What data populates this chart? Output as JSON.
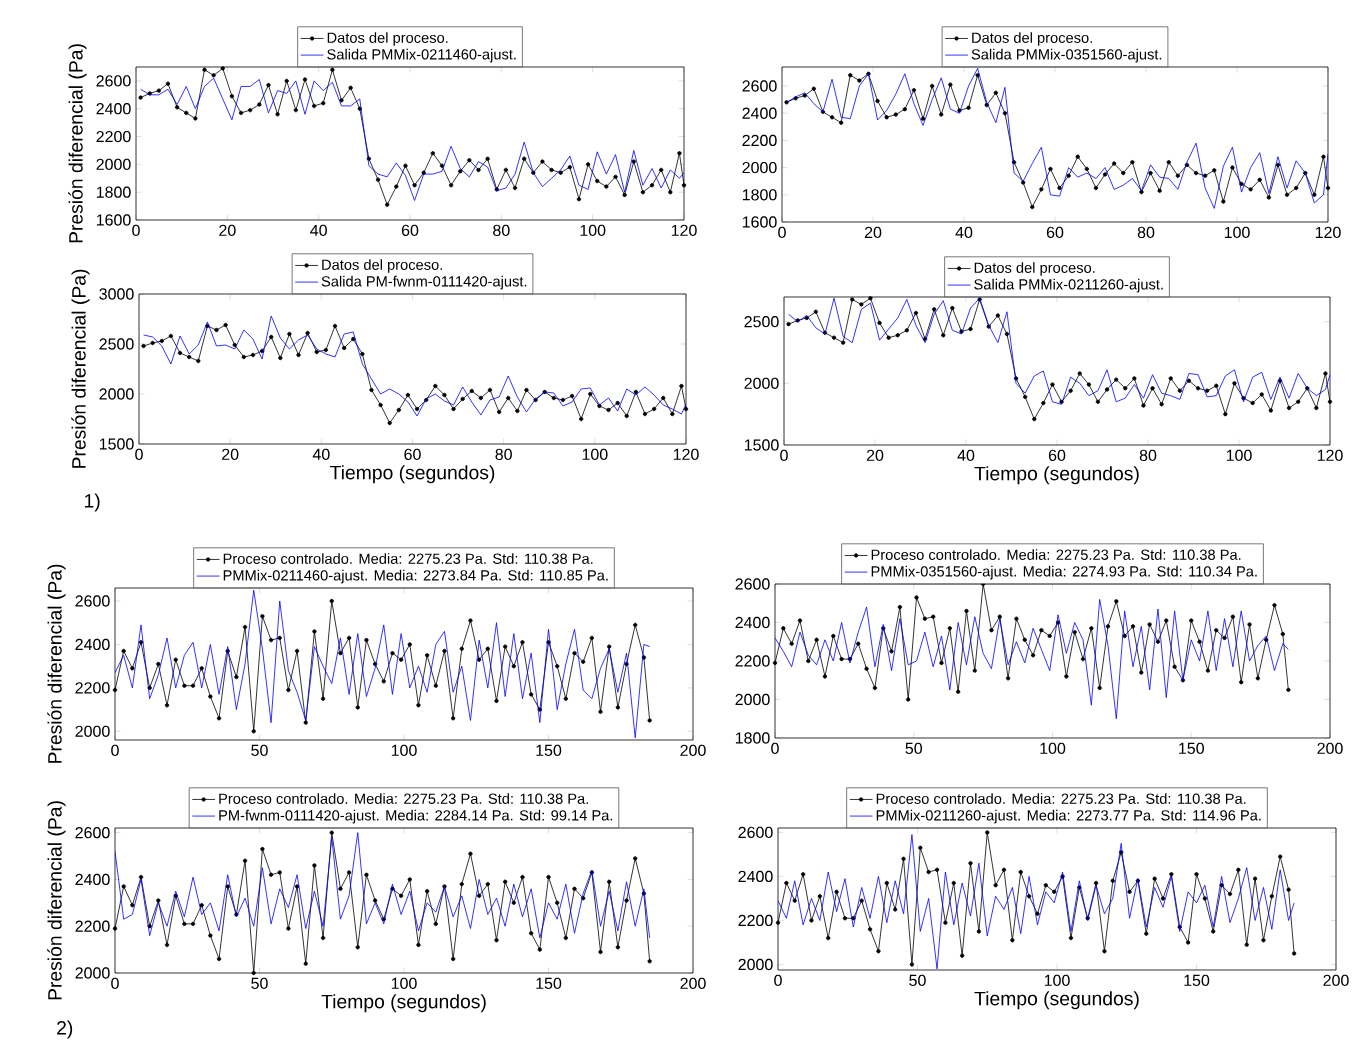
{
  "chart_data": [
    {
      "type": "line",
      "ylabel": "Presión diferencial (Pa)",
      "legend": "top",
      "xlim": [
        0,
        120
      ],
      "xticks": [
        0,
        20,
        40,
        60,
        80,
        100,
        120
      ],
      "ylim": [
        1600,
        2700
      ],
      "yticks": [
        1600,
        1800,
        2000,
        2200,
        2400,
        2600
      ],
      "x": [
        1,
        3,
        5,
        7,
        9,
        11,
        13,
        15,
        17,
        19,
        21,
        23,
        25,
        27,
        29,
        31,
        33,
        35,
        37,
        39,
        41,
        43,
        45,
        47,
        49,
        51,
        53,
        55,
        57,
        59,
        61,
        63,
        65,
        67,
        69,
        71,
        73,
        75,
        77,
        79,
        81,
        83,
        85,
        87,
        89,
        91,
        93,
        95,
        97,
        99,
        101,
        103,
        105,
        107,
        109,
        111,
        113,
        115,
        117,
        119,
        120
      ],
      "series": [
        {
          "name": "Datos del proceso.",
          "color": "#000000",
          "marker": "circle",
          "values": [
            2480,
            2510,
            2530,
            2580,
            2410,
            2370,
            2330,
            2680,
            2640,
            2690,
            2490,
            2370,
            2390,
            2430,
            2570,
            2360,
            2600,
            2390,
            2610,
            2420,
            2440,
            2680,
            2460,
            2550,
            2400,
            2040,
            1890,
            1710,
            1840,
            1990,
            1850,
            1940,
            2080,
            1990,
            1850,
            1950,
            2030,
            1960,
            2040,
            1820,
            1960,
            1830,
            2040,
            1940,
            2020,
            1960,
            1940,
            1980,
            1750,
            2000,
            1880,
            1840,
            1910,
            1780,
            2020,
            1800,
            1850,
            1960,
            1800,
            2080,
            1850
          ]
        },
        {
          "name": "Salida PMMix-0211460-ajust.",
          "color": "#0000ff",
          "marker": "none",
          "values": [
            2540,
            2500,
            2500,
            2540,
            2430,
            2560,
            2400,
            2560,
            2620,
            2470,
            2320,
            2560,
            2560,
            2610,
            2370,
            2530,
            2510,
            2600,
            2360,
            2600,
            2530,
            2590,
            2420,
            2420,
            2470,
            1990,
            1930,
            1910,
            2010,
            1920,
            1740,
            1930,
            1930,
            1950,
            2130,
            1970,
            1910,
            2020,
            1980,
            1810,
            1830,
            1930,
            2160,
            1940,
            1840,
            1900,
            1960,
            2060,
            1850,
            1820,
            2090,
            1930,
            2070,
            1800,
            2100,
            1850,
            1970,
            1830,
            1960,
            1900,
            1940
          ]
        }
      ]
    },
    {
      "type": "line",
      "legend": "top",
      "xlim": [
        0,
        120
      ],
      "xticks": [
        0,
        20,
        40,
        60,
        80,
        100,
        120
      ],
      "ylim": [
        1600,
        2740
      ],
      "yticks": [
        1600,
        1800,
        2000,
        2200,
        2400,
        2600
      ],
      "x": [
        1,
        3,
        5,
        7,
        9,
        11,
        13,
        15,
        17,
        19,
        21,
        23,
        25,
        27,
        29,
        31,
        33,
        35,
        37,
        39,
        41,
        43,
        45,
        47,
        49,
        51,
        53,
        55,
        57,
        59,
        61,
        63,
        65,
        67,
        69,
        71,
        73,
        75,
        77,
        79,
        81,
        83,
        85,
        87,
        89,
        91,
        93,
        95,
        97,
        99,
        101,
        103,
        105,
        107,
        109,
        111,
        113,
        115,
        117,
        119,
        120
      ],
      "series": [
        {
          "name": "Datos del proceso.",
          "color": "#000000",
          "marker": "circle",
          "values": [
            2480,
            2510,
            2530,
            2580,
            2410,
            2370,
            2330,
            2680,
            2640,
            2690,
            2490,
            2370,
            2390,
            2430,
            2570,
            2360,
            2600,
            2390,
            2610,
            2420,
            2440,
            2680,
            2460,
            2550,
            2400,
            2040,
            1890,
            1710,
            1840,
            1990,
            1850,
            1940,
            2080,
            1990,
            1850,
            1950,
            2030,
            1960,
            2040,
            1820,
            1960,
            1830,
            2040,
            1940,
            2020,
            1960,
            1940,
            1980,
            1750,
            2000,
            1880,
            1840,
            1910,
            1780,
            2020,
            1800,
            1850,
            1960,
            1800,
            2080,
            1850
          ]
        },
        {
          "name": "Salida PMMix-0351560-ajust.",
          "color": "#0000ff",
          "marker": "none",
          "values": [
            2480,
            2520,
            2550,
            2470,
            2410,
            2650,
            2370,
            2360,
            2600,
            2690,
            2350,
            2420,
            2540,
            2690,
            2470,
            2310,
            2500,
            2660,
            2430,
            2400,
            2600,
            2730,
            2480,
            2330,
            2590,
            1960,
            1900,
            2030,
            2150,
            1800,
            1790,
            2000,
            1930,
            1960,
            1920,
            2000,
            1840,
            1870,
            1920,
            1830,
            2020,
            1930,
            1920,
            1840,
            2040,
            2180,
            1850,
            1700,
            2010,
            2150,
            1820,
            2000,
            2110,
            1810,
            2080,
            1850,
            2050,
            1960,
            1740,
            1800,
            2100
          ]
        }
      ]
    },
    {
      "type": "line",
      "xlabel": "Tiempo (segundos)",
      "ylabel": "Presión diferencial (Pa)",
      "legend": "top",
      "annotations": [
        "1)"
      ],
      "xlim": [
        0,
        120
      ],
      "xticks": [
        0,
        20,
        40,
        60,
        80,
        100,
        120
      ],
      "ylim": [
        1500,
        3000
      ],
      "yticks": [
        1500,
        2000,
        2500,
        3000
      ],
      "x": [
        1,
        3,
        5,
        7,
        9,
        11,
        13,
        15,
        17,
        19,
        21,
        23,
        25,
        27,
        29,
        31,
        33,
        35,
        37,
        39,
        41,
        43,
        45,
        47,
        49,
        51,
        53,
        55,
        57,
        59,
        61,
        63,
        65,
        67,
        69,
        71,
        73,
        75,
        77,
        79,
        81,
        83,
        85,
        87,
        89,
        91,
        93,
        95,
        97,
        99,
        101,
        103,
        105,
        107,
        109,
        111,
        113,
        115,
        117,
        119,
        120
      ],
      "series": [
        {
          "name": "Datos del proceso.",
          "color": "#000000",
          "marker": "circle",
          "values": [
            2480,
            2510,
            2530,
            2580,
            2410,
            2370,
            2330,
            2680,
            2640,
            2690,
            2490,
            2370,
            2390,
            2430,
            2570,
            2360,
            2600,
            2390,
            2610,
            2420,
            2440,
            2680,
            2460,
            2550,
            2400,
            2040,
            1890,
            1710,
            1840,
            1990,
            1850,
            1940,
            2080,
            1990,
            1850,
            1950,
            2030,
            1960,
            2040,
            1820,
            1960,
            1830,
            2040,
            1940,
            2020,
            1960,
            1940,
            1980,
            1750,
            2000,
            1880,
            1840,
            1910,
            1780,
            2020,
            1800,
            1850,
            1960,
            1800,
            2080,
            1850
          ]
        },
        {
          "name": "Salida PM-fwnm-0111420-ajust.",
          "color": "#0000ff",
          "marker": "none",
          "values": [
            2590,
            2570,
            2480,
            2300,
            2580,
            2400,
            2490,
            2720,
            2480,
            2490,
            2450,
            2640,
            2550,
            2350,
            2780,
            2560,
            2450,
            2540,
            2590,
            2450,
            2400,
            2370,
            2600,
            2620,
            2300,
            2150,
            2000,
            2050,
            2000,
            1920,
            1780,
            1950,
            2000,
            1930,
            1890,
            2070,
            1920,
            1790,
            1940,
            1970,
            2180,
            1970,
            1820,
            1950,
            2020,
            2010,
            1880,
            1920,
            2050,
            2060,
            1890,
            1960,
            1830,
            2050,
            1990,
            2070,
            1990,
            1890,
            1850,
            1800,
            1900
          ]
        }
      ]
    },
    {
      "type": "line",
      "xlabel": "Tiempo (segundos)",
      "legend": "top",
      "xlim": [
        0,
        120
      ],
      "xticks": [
        0,
        20,
        40,
        60,
        80,
        100,
        120
      ],
      "ylim": [
        1500,
        2700
      ],
      "yticks": [
        1500,
        2000,
        2500
      ],
      "x": [
        1,
        3,
        5,
        7,
        9,
        11,
        13,
        15,
        17,
        19,
        21,
        23,
        25,
        27,
        29,
        31,
        33,
        35,
        37,
        39,
        41,
        43,
        45,
        47,
        49,
        51,
        53,
        55,
        57,
        59,
        61,
        63,
        65,
        67,
        69,
        71,
        73,
        75,
        77,
        79,
        81,
        83,
        85,
        87,
        89,
        91,
        93,
        95,
        97,
        99,
        101,
        103,
        105,
        107,
        109,
        111,
        113,
        115,
        117,
        119,
        120
      ],
      "series": [
        {
          "name": "Datos del proceso.",
          "color": "#000000",
          "marker": "circle",
          "values": [
            2480,
            2510,
            2530,
            2580,
            2410,
            2370,
            2330,
            2680,
            2640,
            2690,
            2490,
            2370,
            2390,
            2430,
            2570,
            2360,
            2600,
            2390,
            2610,
            2420,
            2440,
            2680,
            2460,
            2550,
            2400,
            2040,
            1890,
            1710,
            1840,
            1990,
            1850,
            1940,
            2080,
            1990,
            1850,
            1950,
            2030,
            1960,
            2040,
            1820,
            1960,
            1830,
            2040,
            1940,
            2020,
            1960,
            1940,
            1980,
            1750,
            2000,
            1880,
            1840,
            1910,
            1780,
            2020,
            1800,
            1850,
            1960,
            1800,
            2080,
            1850
          ]
        },
        {
          "name": "Salida PMMix-0211260-ajust.",
          "color": "#0000ff",
          "marker": "none",
          "values": [
            2560,
            2500,
            2550,
            2450,
            2400,
            2690,
            2380,
            2330,
            2600,
            2650,
            2350,
            2440,
            2530,
            2680,
            2470,
            2330,
            2560,
            2670,
            2430,
            2400,
            2610,
            2690,
            2470,
            2330,
            2580,
            2000,
            1920,
            2060,
            2100,
            1850,
            1830,
            2050,
            2000,
            1900,
            1940,
            2110,
            1850,
            1880,
            1990,
            1880,
            2070,
            1920,
            1900,
            1870,
            2080,
            2070,
            1890,
            1900,
            2060,
            2110,
            1850,
            2050,
            2090,
            1870,
            2050,
            1880,
            2080,
            1960,
            1900,
            1950,
            2070
          ]
        }
      ]
    },
    {
      "type": "line",
      "ylabel": "Presión diferencial (Pa)",
      "legend": "top",
      "xlim": [
        0,
        200
      ],
      "xticks": [
        0,
        50,
        100,
        150,
        200
      ],
      "ylim": [
        1960,
        2660
      ],
      "yticks": [
        2000,
        2200,
        2400,
        2600
      ],
      "x": [
        0,
        3,
        6,
        9,
        12,
        15,
        18,
        21,
        24,
        27,
        30,
        33,
        36,
        39,
        42,
        45,
        48,
        51,
        54,
        57,
        60,
        63,
        66,
        69,
        72,
        75,
        78,
        81,
        84,
        87,
        90,
        93,
        96,
        99,
        102,
        105,
        108,
        111,
        114,
        117,
        120,
        123,
        126,
        129,
        132,
        135,
        138,
        141,
        144,
        147,
        150,
        153,
        156,
        159,
        162,
        165,
        168,
        171,
        174,
        177,
        180,
        183,
        185
      ],
      "series": [
        {
          "name": "Proceso controlado. Media: 2275.23 Pa. Std: 110.38 Pa.",
          "color": "#000000",
          "marker": "circle",
          "values": [
            2190,
            2370,
            2290,
            2410,
            2200,
            2310,
            2120,
            2330,
            2210,
            2210,
            2290,
            2160,
            2060,
            2370,
            2250,
            2480,
            2000,
            2530,
            2420,
            2430,
            2190,
            2370,
            2040,
            2460,
            2150,
            2600,
            2360,
            2430,
            2110,
            2420,
            2310,
            2230,
            2360,
            2330,
            2400,
            2120,
            2350,
            2210,
            2370,
            2060,
            2380,
            2510,
            2330,
            2380,
            2140,
            2390,
            2300,
            2410,
            2170,
            2100,
            2410,
            2300,
            2150,
            2360,
            2320,
            2430,
            2090,
            2390,
            2110,
            2310,
            2490,
            2340,
            2050
          ]
        },
        {
          "name": "PMMix-0211460-ajust. Media: 2273.84 Pa. Std: 110.85 Pa.",
          "color": "#0000ff",
          "marker": "none",
          "values": [
            2270,
            2350,
            2200,
            2490,
            2150,
            2260,
            2430,
            2200,
            2350,
            2410,
            2200,
            2400,
            2170,
            2390,
            2100,
            2310,
            2650,
            2380,
            2040,
            2600,
            2280,
            2180,
            2050,
            2390,
            2300,
            2220,
            2430,
            2170,
            2450,
            2160,
            2290,
            2490,
            2170,
            2450,
            2200,
            2300,
            2180,
            2400,
            2460,
            2180,
            2300,
            2050,
            2420,
            2200,
            2500,
            2160,
            2450,
            2150,
            2360,
            2040,
            2470,
            2100,
            2310,
            2470,
            2190,
            2150,
            2290,
            2380,
            2180,
            2360,
            1970,
            2400,
            2390
          ]
        }
      ]
    },
    {
      "type": "line",
      "legend": "top",
      "xlim": [
        0,
        200
      ],
      "xticks": [
        0,
        50,
        100,
        150,
        200
      ],
      "ylim": [
        1800,
        2600
      ],
      "yticks": [
        1800,
        2000,
        2200,
        2400,
        2600
      ],
      "x": [
        0,
        3,
        6,
        9,
        12,
        15,
        18,
        21,
        24,
        27,
        30,
        33,
        36,
        39,
        42,
        45,
        48,
        51,
        54,
        57,
        60,
        63,
        66,
        69,
        72,
        75,
        78,
        81,
        84,
        87,
        90,
        93,
        96,
        99,
        102,
        105,
        108,
        111,
        114,
        117,
        120,
        123,
        126,
        129,
        132,
        135,
        138,
        141,
        144,
        147,
        150,
        153,
        156,
        159,
        162,
        165,
        168,
        171,
        174,
        177,
        180,
        183,
        185
      ],
      "series": [
        {
          "name": "Proceso controlado. Media: 2275.23 Pa. Std: 110.38 Pa.",
          "color": "#000000",
          "marker": "circle",
          "values": [
            2190,
            2370,
            2290,
            2410,
            2200,
            2310,
            2120,
            2330,
            2210,
            2210,
            2290,
            2160,
            2060,
            2370,
            2250,
            2480,
            2000,
            2530,
            2420,
            2430,
            2190,
            2370,
            2040,
            2460,
            2150,
            2600,
            2360,
            2430,
            2110,
            2420,
            2310,
            2230,
            2360,
            2330,
            2400,
            2120,
            2350,
            2210,
            2370,
            2060,
            2380,
            2510,
            2330,
            2380,
            2140,
            2390,
            2300,
            2410,
            2170,
            2100,
            2410,
            2300,
            2150,
            2360,
            2320,
            2430,
            2090,
            2390,
            2110,
            2310,
            2490,
            2340,
            2050
          ]
        },
        {
          "name": "PMMix-0351560-ajust. Media: 2274.93 Pa. Std: 110.34 Pa.",
          "color": "#0000ff",
          "marker": "none",
          "values": [
            2320,
            2250,
            2170,
            2350,
            2230,
            2180,
            2310,
            2200,
            2400,
            2190,
            2350,
            2480,
            2170,
            2390,
            2150,
            2420,
            2180,
            2200,
            2350,
            2170,
            2330,
            2050,
            2400,
            2180,
            2430,
            2240,
            2160,
            2420,
            2180,
            2300,
            2190,
            2370,
            2260,
            2150,
            2440,
            2240,
            2400,
            2310,
            1970,
            2520,
            2280,
            1900,
            2460,
            2170,
            2380,
            2050,
            2470,
            2010,
            2460,
            2100,
            2310,
            2200,
            2460,
            2150,
            2420,
            2170,
            2460,
            2200,
            2280,
            2330,
            2150,
            2290,
            2260
          ]
        }
      ]
    },
    {
      "type": "line",
      "xlabel": "Tiempo (segundos)",
      "ylabel": "Presión diferencial (Pa)",
      "legend": "top",
      "annotations": [
        "2)"
      ],
      "xlim": [
        0,
        200
      ],
      "xticks": [
        0,
        50,
        100,
        150,
        200
      ],
      "ylim": [
        2000,
        2620
      ],
      "yticks": [
        2000,
        2200,
        2400,
        2600
      ],
      "x": [
        0,
        3,
        6,
        9,
        12,
        15,
        18,
        21,
        24,
        27,
        30,
        33,
        36,
        39,
        42,
        45,
        48,
        51,
        54,
        57,
        60,
        63,
        66,
        69,
        72,
        75,
        78,
        81,
        84,
        87,
        90,
        93,
        96,
        99,
        102,
        105,
        108,
        111,
        114,
        117,
        120,
        123,
        126,
        129,
        132,
        135,
        138,
        141,
        144,
        147,
        150,
        153,
        156,
        159,
        162,
        165,
        168,
        171,
        174,
        177,
        180,
        183,
        185
      ],
      "series": [
        {
          "name": "Proceso controlado. Media: 2275.23 Pa. Std: 110.38 Pa.",
          "color": "#000000",
          "marker": "circle",
          "values": [
            2190,
            2370,
            2290,
            2410,
            2200,
            2310,
            2120,
            2330,
            2210,
            2210,
            2290,
            2160,
            2060,
            2370,
            2250,
            2480,
            2000,
            2530,
            2420,
            2430,
            2190,
            2370,
            2040,
            2460,
            2150,
            2600,
            2360,
            2430,
            2110,
            2420,
            2310,
            2230,
            2360,
            2330,
            2400,
            2120,
            2350,
            2210,
            2370,
            2060,
            2380,
            2510,
            2330,
            2380,
            2140,
            2390,
            2300,
            2410,
            2170,
            2100,
            2410,
            2300,
            2150,
            2360,
            2320,
            2430,
            2090,
            2390,
            2110,
            2310,
            2490,
            2340,
            2050
          ]
        },
        {
          "name": "PM-fwnm-0111420-ajust. Media: 2284.14 Pa. Std: 99.14 Pa.",
          "color": "#0000ff",
          "marker": "none",
          "values": [
            2520,
            2230,
            2250,
            2400,
            2160,
            2300,
            2200,
            2350,
            2240,
            2410,
            2250,
            2300,
            2180,
            2420,
            2240,
            2320,
            2200,
            2450,
            2210,
            2360,
            2280,
            2420,
            2190,
            2350,
            2200,
            2580,
            2230,
            2330,
            2600,
            2210,
            2300,
            2210,
            2380,
            2250,
            2350,
            2180,
            2300,
            2260,
            2370,
            2240,
            2330,
            2190,
            2400,
            2250,
            2320,
            2200,
            2380,
            2240,
            2360,
            2150,
            2300,
            2230,
            2380,
            2170,
            2340,
            2440,
            2200,
            2350,
            2180,
            2390,
            2200,
            2360,
            2150
          ]
        }
      ]
    },
    {
      "type": "line",
      "xlabel": "Tiempo (segundos)",
      "legend": "top",
      "xlim": [
        0,
        200
      ],
      "xticks": [
        0,
        50,
        100,
        150,
        200
      ],
      "ylim": [
        1975,
        2620
      ],
      "yticks": [
        2000,
        2200,
        2400,
        2600
      ],
      "x": [
        0,
        3,
        6,
        9,
        12,
        15,
        18,
        21,
        24,
        27,
        30,
        33,
        36,
        39,
        42,
        45,
        48,
        51,
        54,
        57,
        60,
        63,
        66,
        69,
        72,
        75,
        78,
        81,
        84,
        87,
        90,
        93,
        96,
        99,
        102,
        105,
        108,
        111,
        114,
        117,
        120,
        123,
        126,
        129,
        132,
        135,
        138,
        141,
        144,
        147,
        150,
        153,
        156,
        159,
        162,
        165,
        168,
        171,
        174,
        177,
        180,
        183,
        185
      ],
      "series": [
        {
          "name": "Proceso controlado. Media: 2275.23 Pa. Std: 110.38 Pa.",
          "color": "#000000",
          "marker": "circle",
          "values": [
            2190,
            2370,
            2290,
            2410,
            2200,
            2310,
            2120,
            2330,
            2210,
            2210,
            2290,
            2160,
            2060,
            2370,
            2250,
            2480,
            2000,
            2530,
            2420,
            2430,
            2190,
            2370,
            2040,
            2460,
            2150,
            2600,
            2360,
            2430,
            2110,
            2420,
            2310,
            2230,
            2360,
            2330,
            2400,
            2120,
            2350,
            2210,
            2370,
            2060,
            2380,
            2510,
            2330,
            2380,
            2140,
            2390,
            2300,
            2410,
            2170,
            2100,
            2410,
            2300,
            2150,
            2360,
            2320,
            2430,
            2090,
            2390,
            2110,
            2310,
            2490,
            2340,
            2050
          ]
        },
        {
          "name": "PMMix-0211260-ajust. Media: 2273.77 Pa. Std: 114.96 Pa.",
          "color": "#0000ff",
          "marker": "none",
          "values": [
            2290,
            2210,
            2380,
            2180,
            2300,
            2200,
            2420,
            2240,
            2390,
            2170,
            2350,
            2210,
            2400,
            2190,
            2380,
            2230,
            2590,
            2150,
            2300,
            1980,
            2420,
            2180,
            2370,
            2220,
            2460,
            2130,
            2310,
            2250,
            2350,
            2140,
            2400,
            2180,
            2330,
            2280,
            2420,
            2150,
            2380,
            2200,
            2360,
            2230,
            2300,
            2550,
            2210,
            2390,
            2170,
            2350,
            2260,
            2400,
            2150,
            2330,
            2280,
            2360,
            2170,
            2400,
            2190,
            2300,
            2440,
            2200,
            2350,
            2160,
            2430,
            2200,
            2280
          ]
        }
      ]
    }
  ]
}
